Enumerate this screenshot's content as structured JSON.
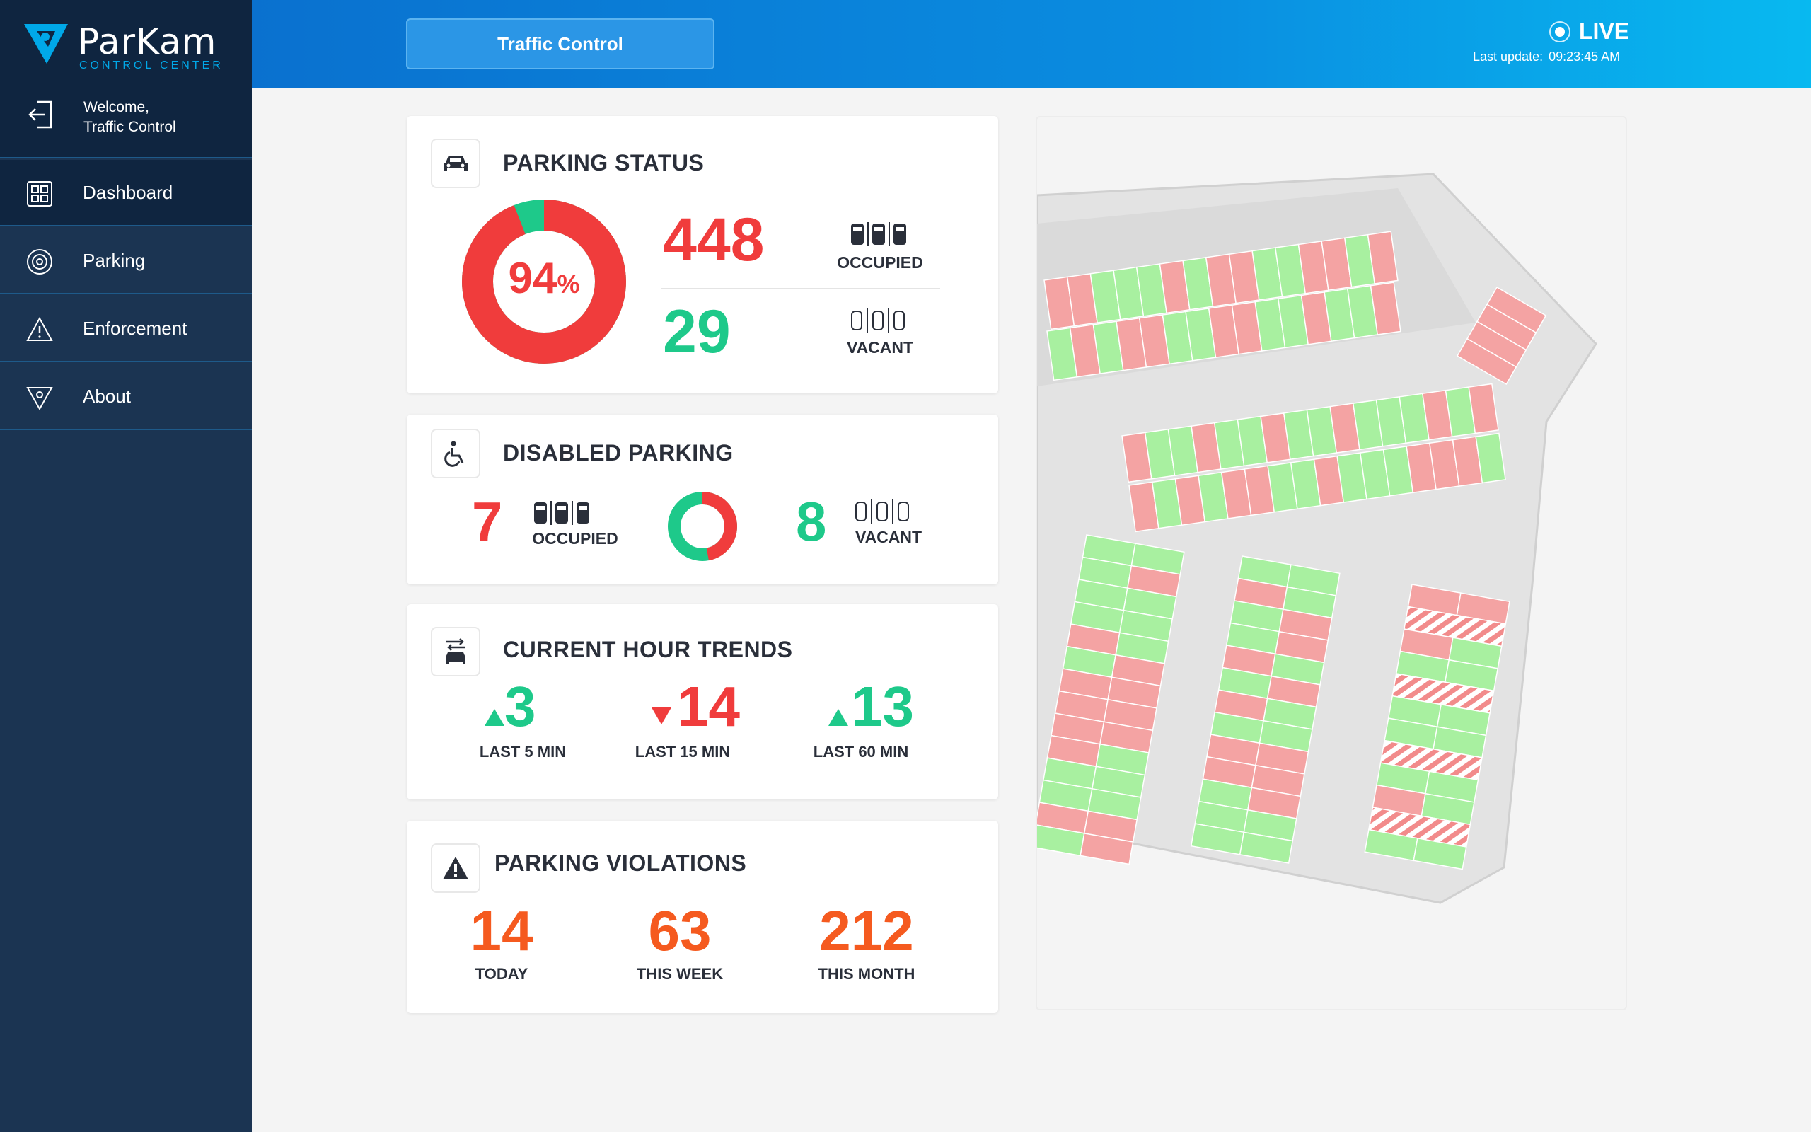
{
  "brand": {
    "name": "ParKam",
    "subtitle": "CONTROL CENTER"
  },
  "user": {
    "welcome_line": "Welcome,",
    "name": "Traffic Control"
  },
  "sidebar": {
    "items": [
      {
        "label": "Dashboard",
        "icon": "grid-icon",
        "active": true
      },
      {
        "label": "Parking",
        "icon": "target-icon",
        "active": false
      },
      {
        "label": "Enforcement",
        "icon": "warning-icon",
        "active": false
      },
      {
        "label": "About",
        "icon": "logo-icon",
        "active": false
      }
    ]
  },
  "header": {
    "tab_label": "Traffic Control",
    "live_label": "LIVE",
    "last_update_label": "Last update:",
    "last_update_time": "09:23:45 AM"
  },
  "parking_status": {
    "title": "PARKING STATUS",
    "percent": "94",
    "percent_sign": "%",
    "occupied_value": "448",
    "occupied_label": "OCCUPIED",
    "vacant_value": "29",
    "vacant_label": "VACANT",
    "occupied_fraction": 0.94
  },
  "disabled_parking": {
    "title": "DISABLED PARKING",
    "occupied_value": "7",
    "occupied_label": "OCCUPIED",
    "vacant_value": "8",
    "vacant_label": "VACANT",
    "occupied_fraction": 0.47
  },
  "trends": {
    "title": "CURRENT HOUR TRENDS",
    "items": [
      {
        "value": "3",
        "label": "LAST 5 MIN",
        "direction": "up"
      },
      {
        "value": "14",
        "label": "LAST 15 MIN",
        "direction": "down"
      },
      {
        "value": "13",
        "label": "LAST 60 MIN",
        "direction": "up"
      }
    ]
  },
  "violations": {
    "title": "PARKING VIOLATIONS",
    "items": [
      {
        "value": "14",
        "label": "TODAY"
      },
      {
        "value": "63",
        "label": "THIS WEEK"
      },
      {
        "value": "212",
        "label": "THIS MONTH"
      }
    ]
  },
  "colors": {
    "occupied": "#f03c3c",
    "vacant": "#1ec98a",
    "violation": "#f55a1f",
    "sidebar": "#1b3452",
    "header": "#0a8de0"
  }
}
